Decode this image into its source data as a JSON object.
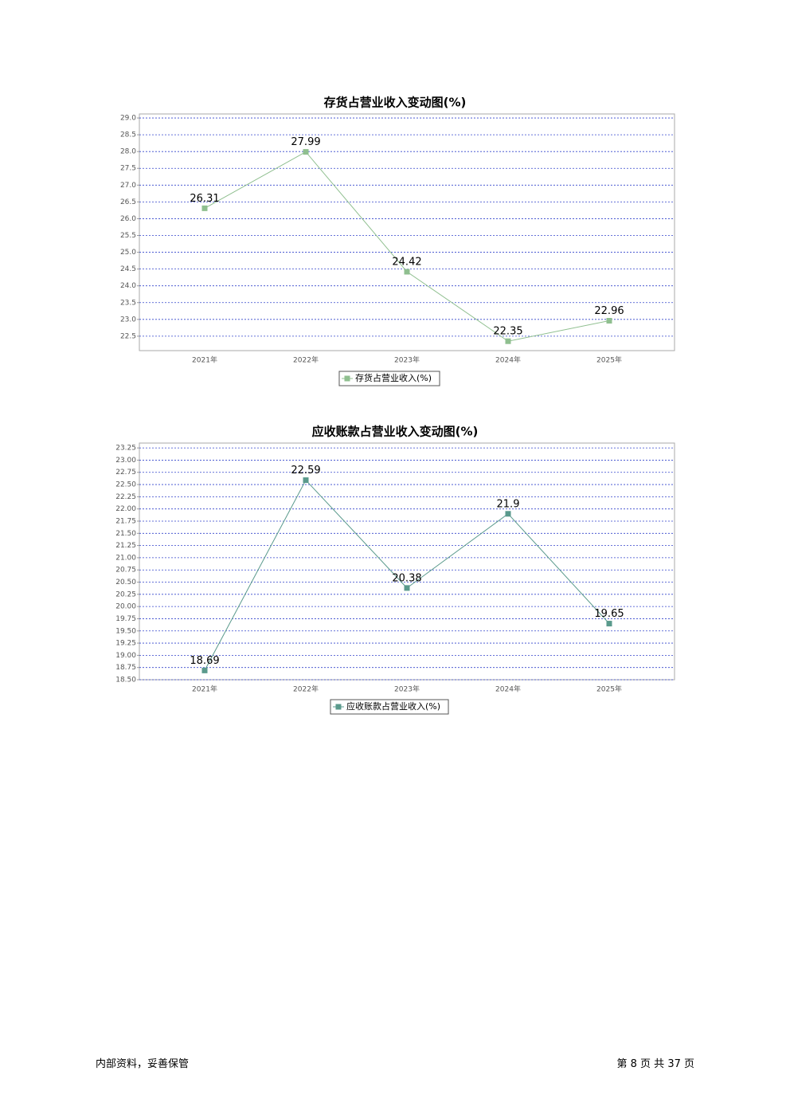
{
  "chart_data": [
    {
      "type": "line",
      "title": "存货占营业收入变动图(%)",
      "categories": [
        "2021年",
        "2022年",
        "2023年",
        "2024年",
        "2025年"
      ],
      "series": [
        {
          "name": "存货占营业收入(%)",
          "color": "#8fbf8f",
          "values": [
            26.31,
            27.99,
            24.42,
            22.35,
            22.96
          ]
        }
      ],
      "ylim": [
        22.07,
        29.12
      ],
      "yticks": [
        {
          "value": 22.5,
          "label": "22.5"
        },
        {
          "value": 23,
          "label": "23.0"
        },
        23.5,
        {
          "value": 24,
          "label": "24.0"
        },
        24.5,
        {
          "value": 25,
          "label": "25.0"
        },
        25.5,
        {
          "value": 26,
          "label": "26.0"
        },
        26.5,
        {
          "value": 27,
          "label": "27.0"
        },
        27.5,
        {
          "value": 28,
          "label": "28.0"
        },
        28.5,
        {
          "value": 29,
          "label": "29.0"
        }
      ],
      "grid": true
    },
    {
      "type": "line",
      "title": "应收账款占营业收入变动图(%)",
      "categories": [
        "2021年",
        "2022年",
        "2023年",
        "2024年",
        "2025年"
      ],
      "series": [
        {
          "name": "应收账款占营业收入(%)",
          "color": "#5a9a8c",
          "values": [
            18.69,
            22.59,
            20.38,
            21.9,
            19.65
          ]
        }
      ],
      "ylim": [
        18.5,
        23.35
      ],
      "yticks": [
        {
          "value": 18.5,
          "label": "18.50"
        },
        18.75,
        {
          "value": 19,
          "label": "19.00"
        },
        19.25,
        {
          "value": 19.5,
          "label": "19.50"
        },
        19.75,
        {
          "value": 20,
          "label": "20.00"
        },
        20.25,
        {
          "value": 20.5,
          "label": "20.50"
        },
        20.75,
        {
          "value": 21,
          "label": "21.00"
        },
        21.25,
        {
          "value": 21.5,
          "label": "21.50"
        },
        21.75,
        {
          "value": 22,
          "label": "22.00"
        },
        22.25,
        {
          "value": 22.5,
          "label": "22.50"
        },
        22.75,
        {
          "value": 23,
          "label": "23.00"
        },
        23.25
      ],
      "grid": true
    }
  ],
  "footer": {
    "left": "内部资料，妥善保管",
    "right": "第 8 页   共 37 页"
  }
}
